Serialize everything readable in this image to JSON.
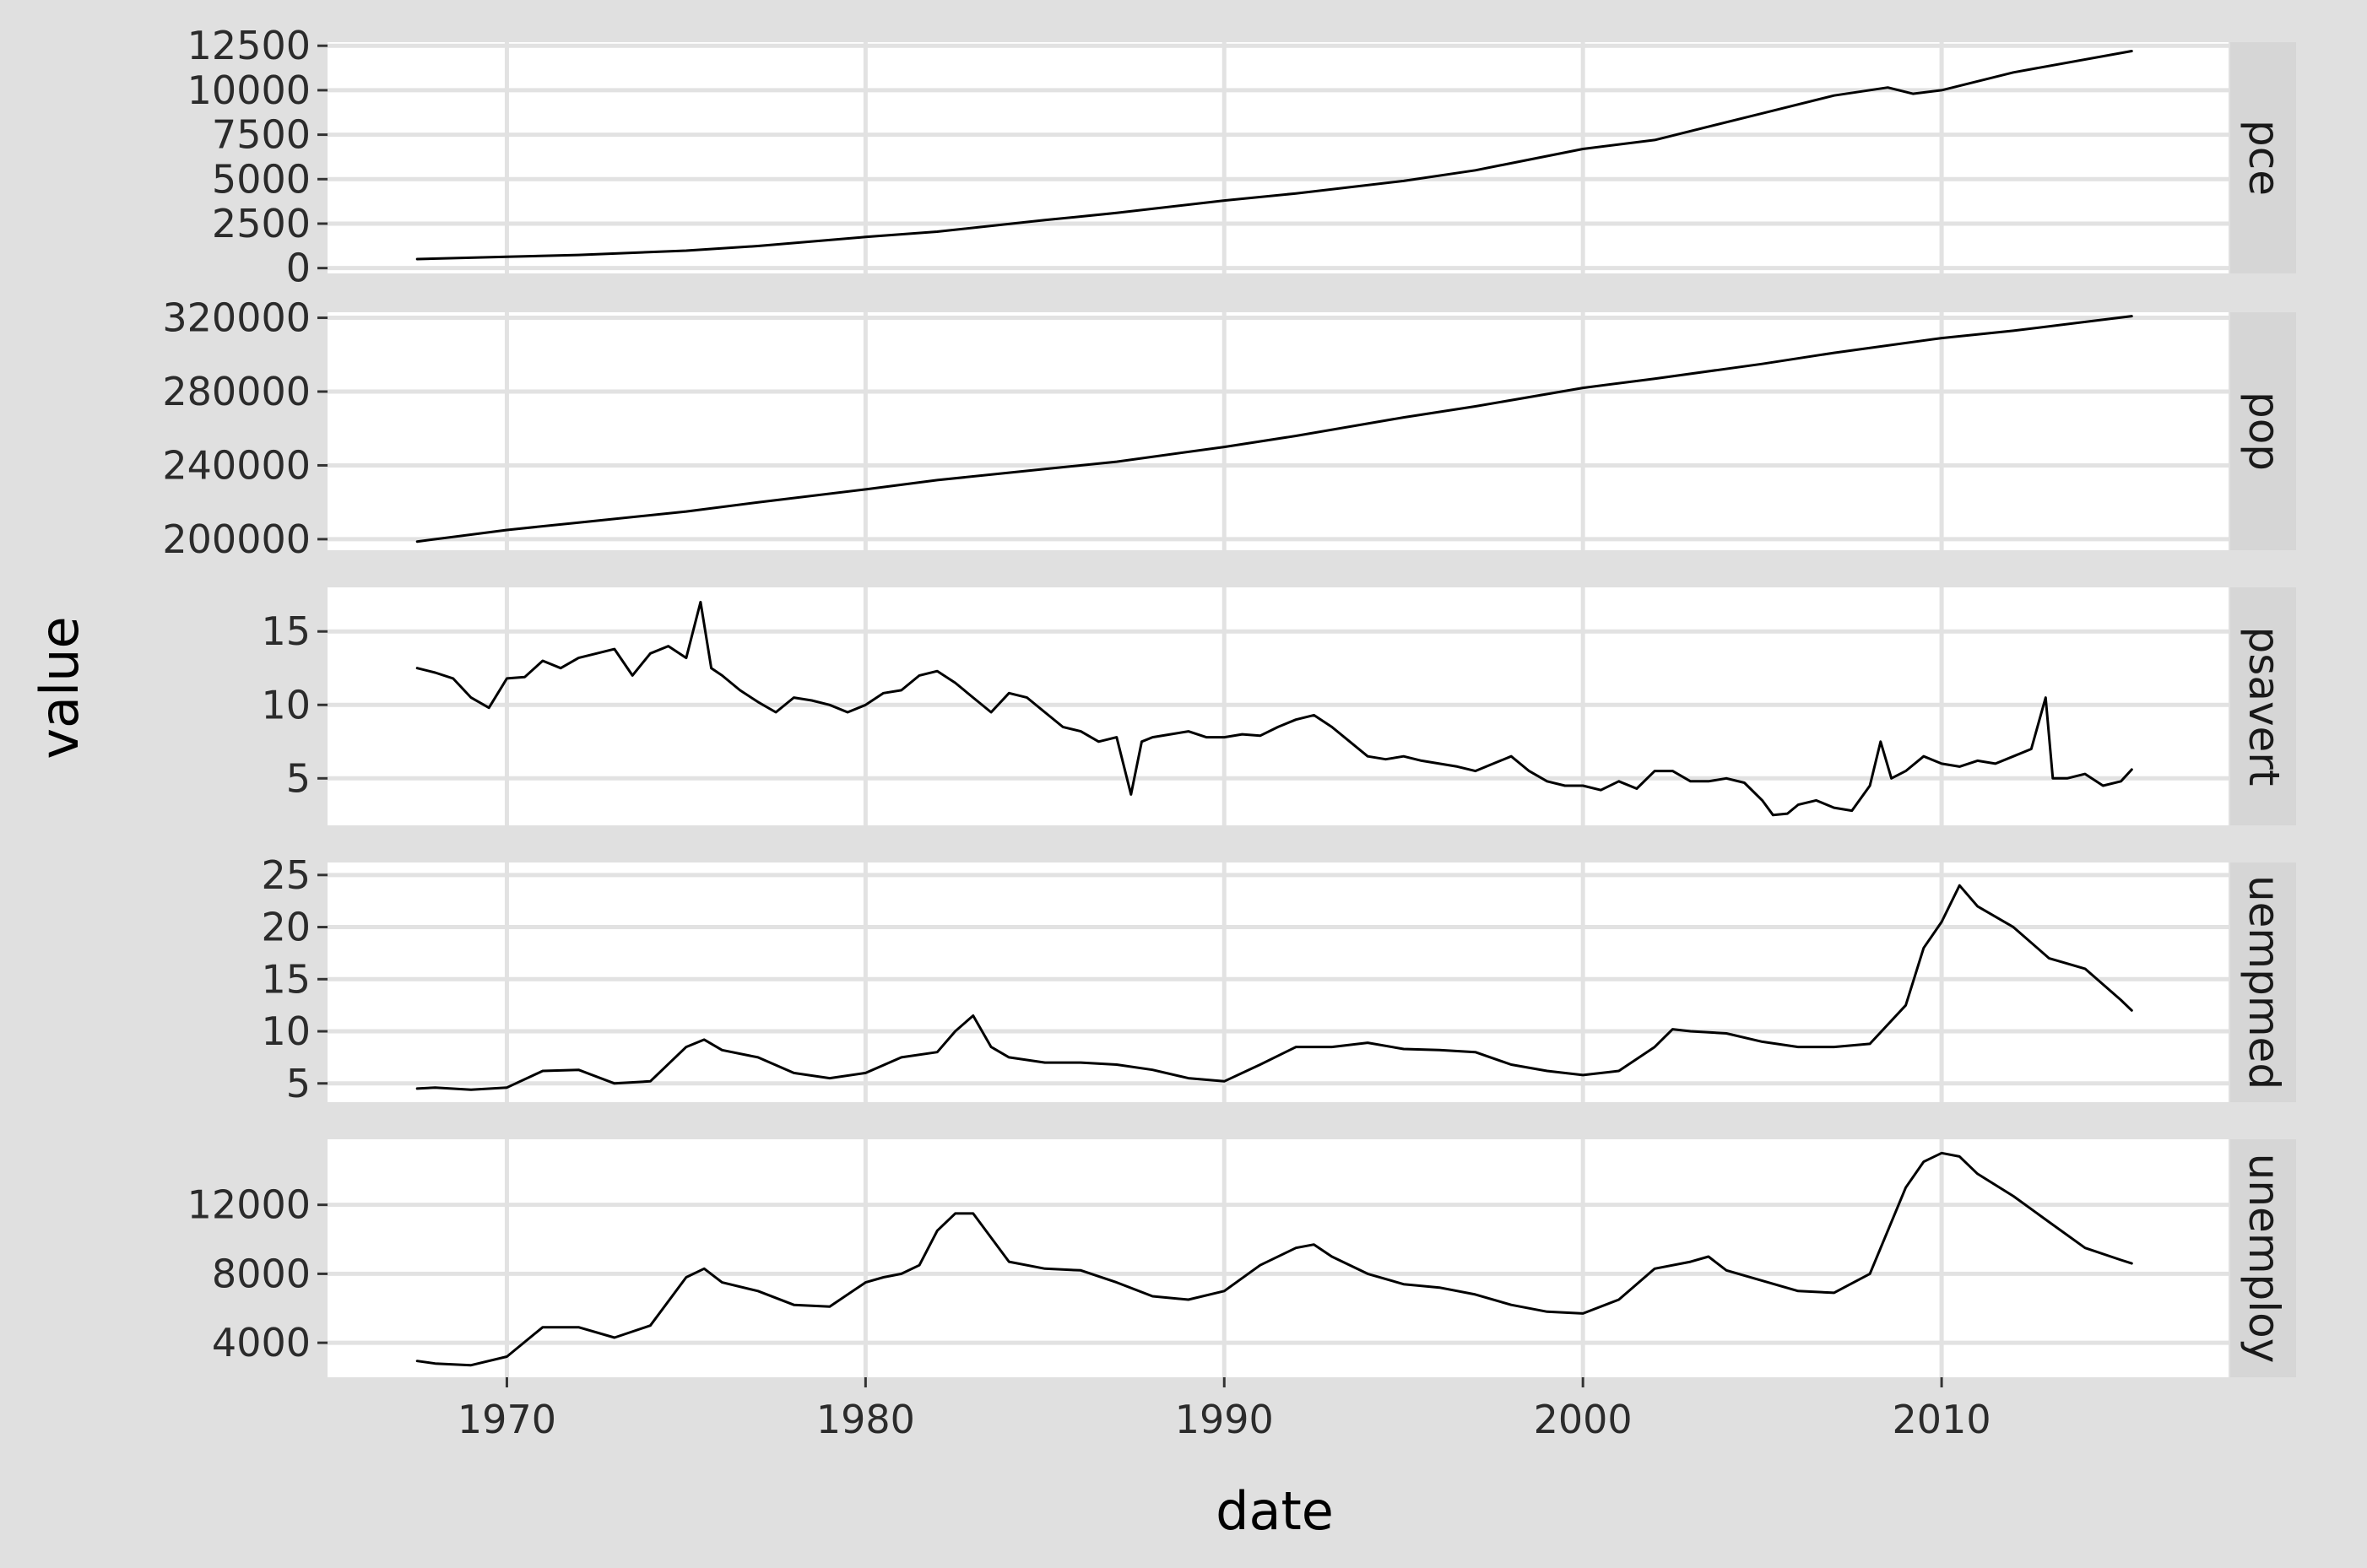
{
  "chart_data": {
    "type": "line",
    "title": "",
    "xlabel": "date",
    "ylabel": "value",
    "xlim": [
      1965,
      2018
    ],
    "x_ticks": [
      1970,
      1980,
      1990,
      2000,
      2010
    ],
    "x_tick_labels": [
      "1970",
      "1980",
      "1990",
      "2000",
      "2010"
    ],
    "facet_scales": "free_y",
    "grid": true,
    "legend": "none",
    "line_color": "#000000",
    "panels": [
      {
        "name": "pce",
        "ylim": [
          -300,
          12700
        ],
        "y_ticks": [
          0,
          2500,
          5000,
          7500,
          10000,
          12500
        ],
        "y_tick_labels": [
          "0",
          "2500",
          "5000",
          "7500",
          "10000",
          "12500"
        ],
        "x": [
          1967.5,
          1970,
          1972,
          1975,
          1977,
          1980,
          1982,
          1985,
          1987,
          1990,
          1992,
          1995,
          1997,
          2000,
          2002,
          2005,
          2007,
          2008.5,
          2009.2,
          2010,
          2012,
          2015.3
        ],
        "values": [
          507,
          640,
          740,
          980,
          1240,
          1750,
          2050,
          2700,
          3100,
          3800,
          4200,
          4900,
          5500,
          6700,
          7200,
          8700,
          9700,
          10150,
          9800,
          10000,
          11000,
          12200
        ]
      },
      {
        "name": "pop",
        "ylim": [
          194000,
          323000
        ],
        "y_ticks": [
          200000,
          240000,
          280000,
          320000
        ],
        "y_tick_labels": [
          "200000",
          "240000",
          "280000",
          "320000"
        ],
        "x": [
          1967.5,
          1970,
          1972,
          1975,
          1977,
          1980,
          1982,
          1985,
          1987,
          1990,
          1992,
          1995,
          1997,
          2000,
          2002,
          2005,
          2007,
          2010,
          2012,
          2015.3
        ],
        "values": [
          198712,
          205000,
          209000,
          215000,
          220000,
          227000,
          232000,
          238000,
          242000,
          250000,
          256000,
          266000,
          272000,
          282000,
          287000,
          295000,
          301000,
          309000,
          313000,
          320887
        ]
      },
      {
        "name": "psavert",
        "ylim": [
          1.8,
          18
        ],
        "y_ticks": [
          5,
          10,
          15
        ],
        "y_tick_labels": [
          "5",
          "10",
          "15"
        ],
        "x": [
          1967.5,
          1968,
          1968.5,
          1969,
          1969.5,
          1970,
          1970.5,
          1971,
          1971.5,
          1972,
          1972.5,
          1973,
          1973.5,
          1974,
          1974.5,
          1975,
          1975.4,
          1975.7,
          1976,
          1976.5,
          1977,
          1977.5,
          1978,
          1978.5,
          1979,
          1979.5,
          1980,
          1980.5,
          1981,
          1981.5,
          1982,
          1982.5,
          1983,
          1983.5,
          1984,
          1984.5,
          1985,
          1985.5,
          1986,
          1986.5,
          1987,
          1987.4,
          1987.7,
          1988,
          1988.5,
          1989,
          1989.5,
          1990,
          1990.5,
          1991,
          1991.5,
          1992,
          1992.5,
          1993,
          1993.5,
          1994,
          1994.5,
          1995,
          1995.5,
          1996,
          1996.5,
          1997,
          1997.5,
          1998,
          1998.5,
          1999,
          1999.5,
          2000,
          2000.5,
          2001,
          2001.5,
          2002,
          2002.5,
          2003,
          2003.5,
          2004,
          2004.5,
          2005,
          2005.3,
          2005.7,
          2006,
          2006.5,
          2007,
          2007.5,
          2008,
          2008.3,
          2008.6,
          2009,
          2009.5,
          2010,
          2010.5,
          2011,
          2011.5,
          2012,
          2012.5,
          2012.9,
          2013.1,
          2013.5,
          2014,
          2014.5,
          2015,
          2015.3
        ],
        "values": [
          12.5,
          12.2,
          11.8,
          10.5,
          9.8,
          11.8,
          11.9,
          13.0,
          12.5,
          13.2,
          13.5,
          13.8,
          12.0,
          13.5,
          14.0,
          13.2,
          17.0,
          12.5,
          12.0,
          11.0,
          10.2,
          9.5,
          10.5,
          10.3,
          10.0,
          9.5,
          10.0,
          10.8,
          11.0,
          12.0,
          12.3,
          11.5,
          10.5,
          9.5,
          10.8,
          10.5,
          9.5,
          8.5,
          8.2,
          7.5,
          7.8,
          3.9,
          7.5,
          7.8,
          8.0,
          8.2,
          7.8,
          7.8,
          8.0,
          7.9,
          8.5,
          9.0,
          9.3,
          8.5,
          7.5,
          6.5,
          6.3,
          6.5,
          6.2,
          6.0,
          5.8,
          5.5,
          6.0,
          6.5,
          5.5,
          4.8,
          4.5,
          4.5,
          4.2,
          4.8,
          4.3,
          5.5,
          5.5,
          4.8,
          4.8,
          5.0,
          4.7,
          3.5,
          2.5,
          2.6,
          3.2,
          3.5,
          3.0,
          2.8,
          4.5,
          7.5,
          5.0,
          5.5,
          6.5,
          6.0,
          5.8,
          6.2,
          6.0,
          6.5,
          7.0,
          10.5,
          5.0,
          5.0,
          5.3,
          4.5,
          4.8,
          5.6
        ],
        "x_extra": []
      },
      {
        "name": "uempmed",
        "ylim": [
          3.2,
          26.2
        ],
        "y_ticks": [
          5,
          10,
          15,
          20,
          25
        ],
        "y_tick_labels": [
          "5",
          "10",
          "15",
          "20",
          "25"
        ],
        "x": [
          1967.5,
          1968,
          1969,
          1970,
          1971,
          1972,
          1973,
          1974,
          1975,
          1975.5,
          1976,
          1977,
          1978,
          1979,
          1980,
          1981,
          1982,
          1982.5,
          1983,
          1983.5,
          1984,
          1985,
          1986,
          1987,
          1988,
          1989,
          1990,
          1991,
          1992,
          1993,
          1994,
          1995,
          1996,
          1997,
          1998,
          1999,
          2000,
          2001,
          2002,
          2002.5,
          2003,
          2004,
          2005,
          2006,
          2007,
          2008,
          2009,
          2009.5,
          2010,
          2010.5,
          2011,
          2012,
          2013,
          2014,
          2015,
          2015.3
        ],
        "values": [
          4.5,
          4.6,
          4.4,
          4.6,
          6.2,
          6.3,
          5.0,
          5.2,
          8.5,
          9.2,
          8.2,
          7.5,
          6.0,
          5.5,
          6.0,
          7.5,
          8.0,
          10.0,
          11.5,
          8.5,
          7.5,
          7.0,
          7.0,
          6.8,
          6.3,
          5.5,
          5.2,
          6.8,
          8.5,
          8.5,
          8.9,
          8.3,
          8.2,
          8.0,
          6.8,
          6.2,
          5.8,
          6.2,
          8.5,
          10.2,
          10.0,
          9.8,
          9.0,
          8.5,
          8.5,
          8.8,
          12.5,
          18.0,
          20.5,
          24.0,
          22.0,
          20.0,
          17.0,
          16.0,
          13.0,
          12.0
        ]
      },
      {
        "name": "unemploy",
        "ylim": [
          2000,
          15800
        ],
        "y_ticks": [
          4000,
          8000,
          12000
        ],
        "y_tick_labels": [
          "4000",
          "8000",
          "12000"
        ],
        "x": [
          1967.5,
          1968,
          1969,
          1970,
          1971,
          1972,
          1973,
          1974,
          1975,
          1975.5,
          1976,
          1977,
          1978,
          1979,
          1980,
          1980.5,
          1981,
          1981.5,
          1982,
          1982.5,
          1983,
          1984,
          1985,
          1986,
          1987,
          1988,
          1989,
          1990,
          1991,
          1992,
          1992.5,
          1993,
          1994,
          1995,
          1996,
          1997,
          1998,
          1999,
          2000,
          2001,
          2002,
          2003,
          2003.5,
          2004,
          2005,
          2006,
          2007,
          2008,
          2009,
          2009.5,
          2010,
          2010.5,
          2011,
          2012,
          2013,
          2014,
          2015,
          2015.3
        ],
        "values": [
          2944,
          2800,
          2700,
          3200,
          4900,
          4900,
          4300,
          5000,
          7800,
          8300,
          7500,
          7000,
          6200,
          6100,
          7500,
          7800,
          8000,
          8500,
          10500,
          11500,
          11500,
          8700,
          8300,
          8200,
          7500,
          6700,
          6500,
          7000,
          8500,
          9500,
          9700,
          9000,
          8000,
          7400,
          7200,
          6800,
          6200,
          5800,
          5700,
          6500,
          8300,
          8700,
          9000,
          8200,
          7600,
          7000,
          6900,
          8000,
          13000,
          14500,
          15000,
          14800,
          13800,
          12500,
          11000,
          9500,
          8800,
          8600
        ]
      }
    ]
  }
}
